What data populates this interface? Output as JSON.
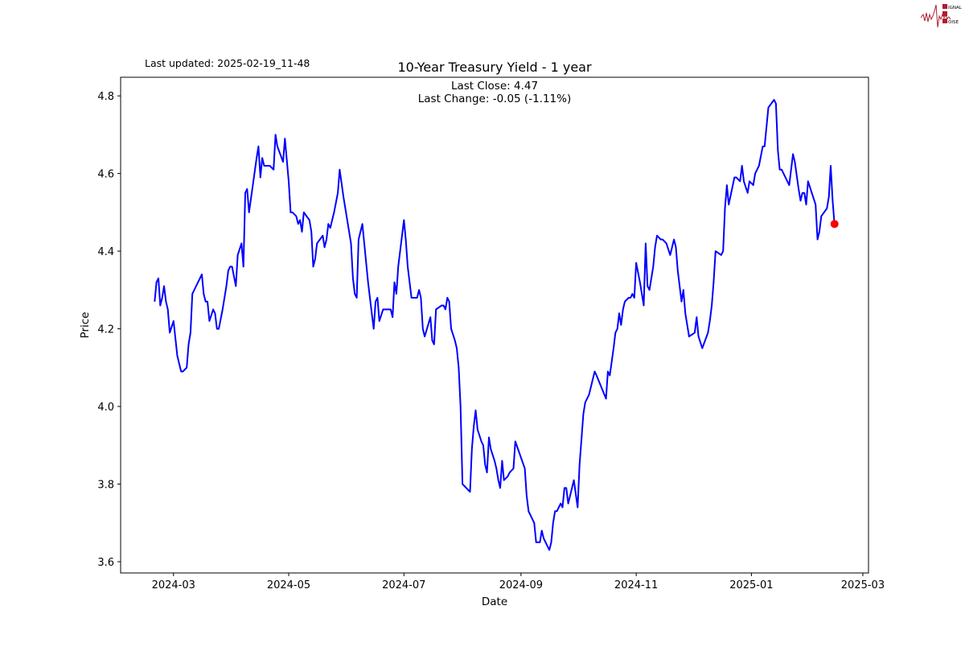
{
  "header": {
    "last_updated": "Last updated: 2025-02-19_11-48",
    "logo_text": "SIGNAL 2 NOISE"
  },
  "chart_data": {
    "type": "line",
    "title": "10-Year Treasury Yield - 1 year",
    "xlabel": "Date",
    "ylabel": "Price",
    "annotation_close": "Last Close: 4.47",
    "annotation_change": "Last Change: -0.05 (-1.11%)",
    "xlim": [
      "2024-02-02",
      "2025-03-04"
    ],
    "ylim": [
      3.571,
      4.848
    ],
    "x_ticks": [
      "2024-03",
      "2024-05",
      "2024-07",
      "2024-09",
      "2024-11",
      "2025-01",
      "2025-03"
    ],
    "y_ticks": [
      "3.6",
      "3.8",
      "4.0",
      "4.2",
      "4.4",
      "4.6",
      "4.8"
    ],
    "grid": false,
    "line_color": "#0000ff",
    "last_point_color": "#ff0000",
    "last_point": {
      "date": "2025-02-14",
      "value": 4.47
    },
    "points": [
      [
        "2024-02-20",
        4.27
      ],
      [
        "2024-02-21",
        4.32
      ],
      [
        "2024-02-22",
        4.33
      ],
      [
        "2024-02-23",
        4.26
      ],
      [
        "2024-02-24",
        4.28
      ],
      [
        "2024-02-25",
        4.31
      ],
      [
        "2024-02-26",
        4.27
      ],
      [
        "2024-02-27",
        4.25
      ],
      [
        "2024-02-28",
        4.19
      ],
      [
        "2024-03-01",
        4.22
      ],
      [
        "2024-03-03",
        4.13
      ],
      [
        "2024-03-05",
        4.09
      ],
      [
        "2024-03-06",
        4.09
      ],
      [
        "2024-03-08",
        4.1
      ],
      [
        "2024-03-09",
        4.16
      ],
      [
        "2024-03-10",
        4.19
      ],
      [
        "2024-03-11",
        4.29
      ],
      [
        "2024-03-13",
        4.31
      ],
      [
        "2024-03-16",
        4.34
      ],
      [
        "2024-03-17",
        4.29
      ],
      [
        "2024-03-18",
        4.27
      ],
      [
        "2024-03-19",
        4.27
      ],
      [
        "2024-03-20",
        4.22
      ],
      [
        "2024-03-22",
        4.25
      ],
      [
        "2024-03-23",
        4.24
      ],
      [
        "2024-03-24",
        4.2
      ],
      [
        "2024-03-25",
        4.2
      ],
      [
        "2024-03-27",
        4.25
      ],
      [
        "2024-03-29",
        4.31
      ],
      [
        "2024-03-30",
        4.35
      ],
      [
        "2024-03-31",
        4.36
      ],
      [
        "2024-04-01",
        4.36
      ],
      [
        "2024-04-03",
        4.31
      ],
      [
        "2024-04-04",
        4.39
      ],
      [
        "2024-04-06",
        4.42
      ],
      [
        "2024-04-07",
        4.36
      ],
      [
        "2024-04-08",
        4.55
      ],
      [
        "2024-04-09",
        4.56
      ],
      [
        "2024-04-10",
        4.5
      ],
      [
        "2024-04-12",
        4.57
      ],
      [
        "2024-04-14",
        4.64
      ],
      [
        "2024-04-15",
        4.67
      ],
      [
        "2024-04-16",
        4.59
      ],
      [
        "2024-04-17",
        4.64
      ],
      [
        "2024-04-18",
        4.62
      ],
      [
        "2024-04-21",
        4.62
      ],
      [
        "2024-04-23",
        4.61
      ],
      [
        "2024-04-24",
        4.7
      ],
      [
        "2024-04-25",
        4.67
      ],
      [
        "2024-04-28",
        4.63
      ],
      [
        "2024-04-29",
        4.69
      ],
      [
        "2024-05-01",
        4.58
      ],
      [
        "2024-05-02",
        4.5
      ],
      [
        "2024-05-03",
        4.5
      ],
      [
        "2024-05-05",
        4.49
      ],
      [
        "2024-05-06",
        4.47
      ],
      [
        "2024-05-07",
        4.48
      ],
      [
        "2024-05-08",
        4.45
      ],
      [
        "2024-05-09",
        4.5
      ],
      [
        "2024-05-12",
        4.48
      ],
      [
        "2024-05-13",
        4.45
      ],
      [
        "2024-05-14",
        4.36
      ],
      [
        "2024-05-15",
        4.38
      ],
      [
        "2024-05-16",
        4.42
      ],
      [
        "2024-05-19",
        4.44
      ],
      [
        "2024-05-20",
        4.41
      ],
      [
        "2024-05-21",
        4.43
      ],
      [
        "2024-05-22",
        4.47
      ],
      [
        "2024-05-23",
        4.46
      ],
      [
        "2024-05-25",
        4.5
      ],
      [
        "2024-05-27",
        4.55
      ],
      [
        "2024-05-28",
        4.61
      ],
      [
        "2024-05-30",
        4.54
      ],
      [
        "2024-06-03",
        4.42
      ],
      [
        "2024-06-04",
        4.33
      ],
      [
        "2024-06-05",
        4.29
      ],
      [
        "2024-06-06",
        4.28
      ],
      [
        "2024-06-07",
        4.43
      ],
      [
        "2024-06-09",
        4.47
      ],
      [
        "2024-06-12",
        4.32
      ],
      [
        "2024-06-14",
        4.24
      ],
      [
        "2024-06-15",
        4.2
      ],
      [
        "2024-06-16",
        4.27
      ],
      [
        "2024-06-17",
        4.28
      ],
      [
        "2024-06-18",
        4.22
      ],
      [
        "2024-06-20",
        4.25
      ],
      [
        "2024-06-22",
        4.25
      ],
      [
        "2024-06-24",
        4.25
      ],
      [
        "2024-06-25",
        4.23
      ],
      [
        "2024-06-26",
        4.32
      ],
      [
        "2024-06-27",
        4.29
      ],
      [
        "2024-06-28",
        4.36
      ],
      [
        "2024-07-01",
        4.48
      ],
      [
        "2024-07-02",
        4.43
      ],
      [
        "2024-07-03",
        4.36
      ],
      [
        "2024-07-05",
        4.28
      ],
      [
        "2024-07-07",
        4.28
      ],
      [
        "2024-07-08",
        4.28
      ],
      [
        "2024-07-09",
        4.3
      ],
      [
        "2024-07-10",
        4.28
      ],
      [
        "2024-07-11",
        4.2
      ],
      [
        "2024-07-12",
        4.18
      ],
      [
        "2024-07-15",
        4.23
      ],
      [
        "2024-07-16",
        4.17
      ],
      [
        "2024-07-17",
        4.16
      ],
      [
        "2024-07-18",
        4.25
      ],
      [
        "2024-07-21",
        4.26
      ],
      [
        "2024-07-22",
        4.26
      ],
      [
        "2024-07-23",
        4.25
      ],
      [
        "2024-07-24",
        4.28
      ],
      [
        "2024-07-25",
        4.27
      ],
      [
        "2024-07-26",
        4.2
      ],
      [
        "2024-07-28",
        4.17
      ],
      [
        "2024-07-29",
        4.15
      ],
      [
        "2024-07-30",
        4.1
      ],
      [
        "2024-07-31",
        4.0
      ],
      [
        "2024-08-01",
        3.8
      ],
      [
        "2024-08-05",
        3.78
      ],
      [
        "2024-08-06",
        3.89
      ],
      [
        "2024-08-07",
        3.95
      ],
      [
        "2024-08-08",
        3.99
      ],
      [
        "2024-08-09",
        3.94
      ],
      [
        "2024-08-11",
        3.91
      ],
      [
        "2024-08-12",
        3.9
      ],
      [
        "2024-08-13",
        3.85
      ],
      [
        "2024-08-14",
        3.83
      ],
      [
        "2024-08-15",
        3.92
      ],
      [
        "2024-08-16",
        3.89
      ],
      [
        "2024-08-18",
        3.86
      ],
      [
        "2024-08-19",
        3.84
      ],
      [
        "2024-08-20",
        3.81
      ],
      [
        "2024-08-21",
        3.79
      ],
      [
        "2024-08-22",
        3.86
      ],
      [
        "2024-08-23",
        3.81
      ],
      [
        "2024-08-25",
        3.82
      ],
      [
        "2024-08-26",
        3.83
      ],
      [
        "2024-08-28",
        3.84
      ],
      [
        "2024-08-29",
        3.91
      ],
      [
        "2024-09-03",
        3.84
      ],
      [
        "2024-09-04",
        3.77
      ],
      [
        "2024-09-05",
        3.73
      ],
      [
        "2024-09-06",
        3.72
      ],
      [
        "2024-09-08",
        3.7
      ],
      [
        "2024-09-09",
        3.65
      ],
      [
        "2024-09-11",
        3.65
      ],
      [
        "2024-09-12",
        3.68
      ],
      [
        "2024-09-13",
        3.66
      ],
      [
        "2024-09-16",
        3.63
      ],
      [
        "2024-09-17",
        3.65
      ],
      [
        "2024-09-18",
        3.7
      ],
      [
        "2024-09-19",
        3.73
      ],
      [
        "2024-09-20",
        3.73
      ],
      [
        "2024-09-22",
        3.75
      ],
      [
        "2024-09-23",
        3.74
      ],
      [
        "2024-09-24",
        3.79
      ],
      [
        "2024-09-25",
        3.79
      ],
      [
        "2024-09-26",
        3.75
      ],
      [
        "2024-09-29",
        3.81
      ],
      [
        "2024-10-01",
        3.74
      ],
      [
        "2024-10-02",
        3.85
      ],
      [
        "2024-10-04",
        3.98
      ],
      [
        "2024-10-05",
        4.01
      ],
      [
        "2024-10-07",
        4.03
      ],
      [
        "2024-10-08",
        4.05
      ],
      [
        "2024-10-10",
        4.09
      ],
      [
        "2024-10-11",
        4.08
      ],
      [
        "2024-10-16",
        4.02
      ],
      [
        "2024-10-17",
        4.09
      ],
      [
        "2024-10-18",
        4.08
      ],
      [
        "2024-10-20",
        4.15
      ],
      [
        "2024-10-21",
        4.19
      ],
      [
        "2024-10-22",
        4.2
      ],
      [
        "2024-10-23",
        4.24
      ],
      [
        "2024-10-24",
        4.21
      ],
      [
        "2024-10-25",
        4.25
      ],
      [
        "2024-10-26",
        4.27
      ],
      [
        "2024-10-28",
        4.28
      ],
      [
        "2024-10-29",
        4.28
      ],
      [
        "2024-10-30",
        4.29
      ],
      [
        "2024-10-31",
        4.28
      ],
      [
        "2024-11-01",
        4.37
      ],
      [
        "2024-11-03",
        4.32
      ],
      [
        "2024-11-05",
        4.26
      ],
      [
        "2024-11-06",
        4.42
      ],
      [
        "2024-11-07",
        4.31
      ],
      [
        "2024-11-08",
        4.3
      ],
      [
        "2024-11-10",
        4.36
      ],
      [
        "2024-11-11",
        4.41
      ],
      [
        "2024-11-12",
        4.44
      ],
      [
        "2024-11-14",
        4.43
      ],
      [
        "2024-11-15",
        4.43
      ],
      [
        "2024-11-17",
        4.42
      ],
      [
        "2024-11-19",
        4.39
      ],
      [
        "2024-11-21",
        4.43
      ],
      [
        "2024-11-22",
        4.41
      ],
      [
        "2024-11-23",
        4.35
      ],
      [
        "2024-11-25",
        4.27
      ],
      [
        "2024-11-26",
        4.3
      ],
      [
        "2024-11-27",
        4.24
      ],
      [
        "2024-11-29",
        4.18
      ],
      [
        "2024-12-02",
        4.19
      ],
      [
        "2024-12-03",
        4.23
      ],
      [
        "2024-12-04",
        4.18
      ],
      [
        "2024-12-06",
        4.15
      ],
      [
        "2024-12-09",
        4.19
      ],
      [
        "2024-12-10",
        4.22
      ],
      [
        "2024-12-11",
        4.26
      ],
      [
        "2024-12-12",
        4.32
      ],
      [
        "2024-12-13",
        4.4
      ],
      [
        "2024-12-16",
        4.39
      ],
      [
        "2024-12-17",
        4.4
      ],
      [
        "2024-12-18",
        4.51
      ],
      [
        "2024-12-19",
        4.57
      ],
      [
        "2024-12-20",
        4.52
      ],
      [
        "2024-12-23",
        4.59
      ],
      [
        "2024-12-24",
        4.59
      ],
      [
        "2024-12-26",
        4.58
      ],
      [
        "2024-12-27",
        4.62
      ],
      [
        "2024-12-28",
        4.58
      ],
      [
        "2024-12-30",
        4.55
      ],
      [
        "2024-12-31",
        4.58
      ],
      [
        "2025-01-02",
        4.57
      ],
      [
        "2025-01-03",
        4.6
      ],
      [
        "2025-01-05",
        4.62
      ],
      [
        "2025-01-07",
        4.67
      ],
      [
        "2025-01-08",
        4.67
      ],
      [
        "2025-01-10",
        4.77
      ],
      [
        "2025-01-13",
        4.79
      ],
      [
        "2025-01-14",
        4.78
      ],
      [
        "2025-01-15",
        4.66
      ],
      [
        "2025-01-16",
        4.61
      ],
      [
        "2025-01-17",
        4.61
      ],
      [
        "2025-01-21",
        4.57
      ],
      [
        "2025-01-23",
        4.65
      ],
      [
        "2025-01-24",
        4.63
      ],
      [
        "2025-01-26",
        4.56
      ],
      [
        "2025-01-27",
        4.53
      ],
      [
        "2025-01-28",
        4.55
      ],
      [
        "2025-01-29",
        4.55
      ],
      [
        "2025-01-30",
        4.52
      ],
      [
        "2025-01-31",
        4.58
      ],
      [
        "2025-02-02",
        4.55
      ],
      [
        "2025-02-04",
        4.52
      ],
      [
        "2025-02-05",
        4.43
      ],
      [
        "2025-02-06",
        4.45
      ],
      [
        "2025-02-07",
        4.49
      ],
      [
        "2025-02-10",
        4.51
      ],
      [
        "2025-02-11",
        4.54
      ],
      [
        "2025-02-12",
        4.62
      ],
      [
        "2025-02-13",
        4.53
      ],
      [
        "2025-02-14",
        4.47
      ]
    ]
  }
}
